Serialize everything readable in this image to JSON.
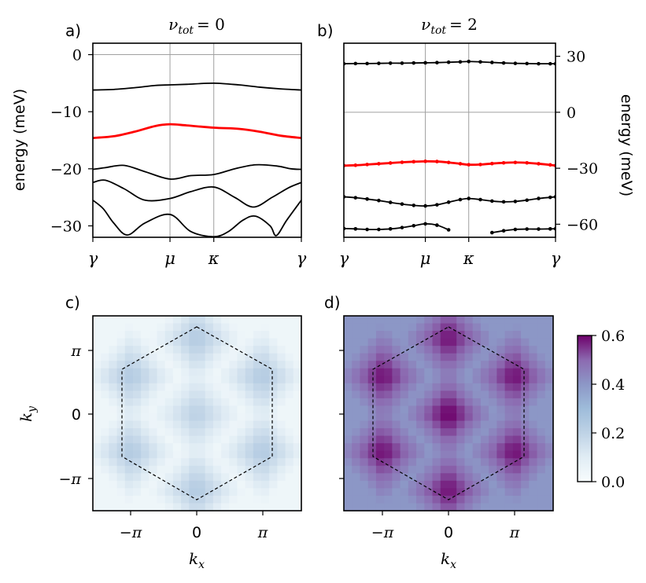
{
  "chart_data": [
    {
      "panel": "a)",
      "type": "line",
      "title": "ν_tot = 0",
      "title_symbol": "ν",
      "title_sub": "tot",
      "title_rest": "= 0",
      "xlabel": "",
      "ylabel": "energy (meV)",
      "ylim": [
        -32,
        2
      ],
      "xlim": [
        0,
        1
      ],
      "x_ticks": [
        {
          "x": 0,
          "label": "γ"
        },
        {
          "x": 0.37,
          "label": "μ"
        },
        {
          "x": 0.58,
          "label": "κ"
        },
        {
          "x": 1,
          "label": "γ"
        }
      ],
      "y_ticks": [
        {
          "value": 0,
          "label": "0"
        },
        {
          "value": -10,
          "label": "−10"
        },
        {
          "value": -20,
          "label": "−20"
        },
        {
          "value": -30,
          "label": "−30"
        }
      ],
      "grid": "vertical lines at μ and κ, horizontal line at 0",
      "series": [
        {
          "name": "band-top",
          "color": "#000000",
          "x": [
            0,
            0.1,
            0.2,
            0.3,
            0.37,
            0.45,
            0.58,
            0.7,
            0.8,
            0.9,
            1
          ],
          "y": [
            -6.2,
            -6.1,
            -5.8,
            -5.4,
            -5.3,
            -5.2,
            -5.0,
            -5.3,
            -5.7,
            -6.0,
            -6.2
          ]
        },
        {
          "name": "band-flat-highlight",
          "color": "#ff0000",
          "x": [
            0,
            0.1,
            0.2,
            0.3,
            0.37,
            0.45,
            0.58,
            0.7,
            0.8,
            0.9,
            1
          ],
          "y": [
            -14.6,
            -14.3,
            -13.5,
            -12.5,
            -12.2,
            -12.4,
            -12.8,
            -13.0,
            -13.5,
            -14.2,
            -14.6
          ]
        },
        {
          "name": "band-3",
          "color": "#000000",
          "x": [
            0,
            0.06,
            0.15,
            0.25,
            0.37,
            0.47,
            0.58,
            0.68,
            0.78,
            0.88,
            0.95,
            1
          ],
          "y": [
            -20.1,
            -19.8,
            -19.4,
            -20.5,
            -21.8,
            -21.2,
            -21.0,
            -20.0,
            -19.3,
            -19.5,
            -20.0,
            -20.1
          ]
        },
        {
          "name": "band-4",
          "color": "#000000",
          "x": [
            0,
            0.06,
            0.15,
            0.25,
            0.37,
            0.47,
            0.58,
            0.68,
            0.77,
            0.86,
            0.94,
            1
          ],
          "y": [
            -22.4,
            -22.0,
            -23.5,
            -25.5,
            -25.2,
            -24.0,
            -23.2,
            -25.0,
            -26.7,
            -25.0,
            -23.3,
            -22.4
          ]
        },
        {
          "name": "band-5",
          "color": "#000000",
          "x": [
            0,
            0.05,
            0.1,
            0.165,
            0.25,
            0.37,
            0.47,
            0.58,
            0.65,
            0.72,
            0.78,
            0.85,
            0.88,
            0.93,
            1
          ],
          "y": [
            -25.5,
            -27.0,
            -29.5,
            -31.6,
            -29.5,
            -28.0,
            -31.0,
            -31.9,
            -31.0,
            -29.0,
            -28.3,
            -30.0,
            -31.7,
            -29.0,
            -25.5
          ]
        }
      ]
    },
    {
      "panel": "b)",
      "type": "line",
      "title": "ν_tot = 2",
      "title_symbol": "ν",
      "title_sub": "tot",
      "title_rest": "= 2",
      "xlabel": "",
      "ylabel": "energy (meV)",
      "ylabel_side": "right",
      "ylim": [
        -67,
        37
      ],
      "xlim": [
        0,
        1
      ],
      "x_ticks": [
        {
          "x": 0,
          "label": "γ"
        },
        {
          "x": 0.385,
          "label": "μ"
        },
        {
          "x": 0.59,
          "label": "κ"
        },
        {
          "x": 1,
          "label": "γ"
        }
      ],
      "y_ticks": [
        {
          "value": 30,
          "label": "30"
        },
        {
          "value": 0,
          "label": "0"
        },
        {
          "value": -30,
          "label": "−30"
        },
        {
          "value": -60,
          "label": "−60"
        }
      ],
      "markers": "dots on every point",
      "series": [
        {
          "name": "band-top",
          "color": "#000000",
          "x": [
            0,
            0.055,
            0.11,
            0.165,
            0.22,
            0.275,
            0.33,
            0.385,
            0.44,
            0.495,
            0.55,
            0.59,
            0.645,
            0.7,
            0.755,
            0.81,
            0.865,
            0.92,
            0.975,
            1
          ],
          "y": [
            26.0,
            26.1,
            26.1,
            26.2,
            26.3,
            26.3,
            26.4,
            26.5,
            26.6,
            26.8,
            27.0,
            27.2,
            27.0,
            26.7,
            26.4,
            26.2,
            26.1,
            26.0,
            26.0,
            26.0
          ]
        },
        {
          "name": "band-flat-highlight",
          "color": "#ff0000",
          "x": [
            0,
            0.055,
            0.11,
            0.165,
            0.22,
            0.275,
            0.33,
            0.385,
            0.44,
            0.495,
            0.55,
            0.59,
            0.645,
            0.7,
            0.755,
            0.81,
            0.865,
            0.92,
            0.975,
            1
          ],
          "y": [
            -28.6,
            -28.4,
            -28.0,
            -27.6,
            -27.2,
            -26.8,
            -26.5,
            -26.3,
            -26.4,
            -26.9,
            -27.6,
            -28.1,
            -28.0,
            -27.5,
            -27.1,
            -26.9,
            -27.1,
            -27.6,
            -28.2,
            -28.6
          ]
        },
        {
          "name": "band-3",
          "color": "#000000",
          "x": [
            0,
            0.055,
            0.11,
            0.165,
            0.22,
            0.275,
            0.33,
            0.385,
            0.44,
            0.495,
            0.55,
            0.59,
            0.645,
            0.7,
            0.755,
            0.81,
            0.865,
            0.92,
            0.975,
            1
          ],
          "y": [
            -45.3,
            -45.8,
            -46.5,
            -47.3,
            -48.3,
            -49.2,
            -49.9,
            -50.2,
            -49.6,
            -48.2,
            -46.8,
            -46.2,
            -46.8,
            -47.6,
            -48.0,
            -47.8,
            -47.1,
            -46.2,
            -45.6,
            -45.3
          ]
        },
        {
          "name": "band-4",
          "color": "#000000",
          "x": [
            0,
            0.055,
            0.11,
            0.165,
            0.22,
            0.275,
            0.33,
            0.385,
            0.44,
            0.495
          ],
          "y": [
            -62.3,
            -62.5,
            -62.8,
            -62.8,
            -62.5,
            -61.8,
            -60.8,
            -59.8,
            -60.5,
            -63.0
          ]
        },
        {
          "name": "band-4b",
          "color": "#000000",
          "x": [
            0.7,
            0.755,
            0.81,
            0.865,
            0.92,
            0.975,
            1
          ],
          "y": [
            -64.5,
            -63.5,
            -62.8,
            -62.6,
            -62.6,
            -62.5,
            -62.4
          ]
        }
      ]
    },
    {
      "panel": "c)",
      "type": "heatmap",
      "title": "",
      "xlabel": "k_x",
      "ylabel": "k_y",
      "x_ticks": [
        "−π",
        "0",
        "π"
      ],
      "y_ticks": [
        "π",
        "0",
        "−π"
      ],
      "colormap": "BuPu",
      "value_range": [
        0.0,
        0.6
      ],
      "peak_values": {
        "center": 0.22,
        "hexagon_corners": 0.25,
        "background": 0.04
      },
      "overlay": "dashed hexagonal Brillouin zone"
    },
    {
      "panel": "d)",
      "type": "heatmap",
      "title": "",
      "xlabel": "k_x",
      "ylabel": "",
      "x_ticks": [
        "−π",
        "0",
        "π"
      ],
      "colormap": "BuPu",
      "value_range": [
        0.0,
        0.6
      ],
      "peak_values": {
        "center": 0.62,
        "hexagon_corners": 0.6,
        "background": 0.4
      },
      "overlay": "dashed hexagonal Brillouin zone",
      "colorbar": {
        "ticks": [
          "0.0",
          "0.2",
          "0.4",
          "0.6"
        ],
        "values": [
          0.0,
          0.2,
          0.4,
          0.6
        ]
      }
    }
  ],
  "colors": {
    "highlight": "#ff0000",
    "bands": "#000000",
    "grid": "#a0a0a0"
  }
}
